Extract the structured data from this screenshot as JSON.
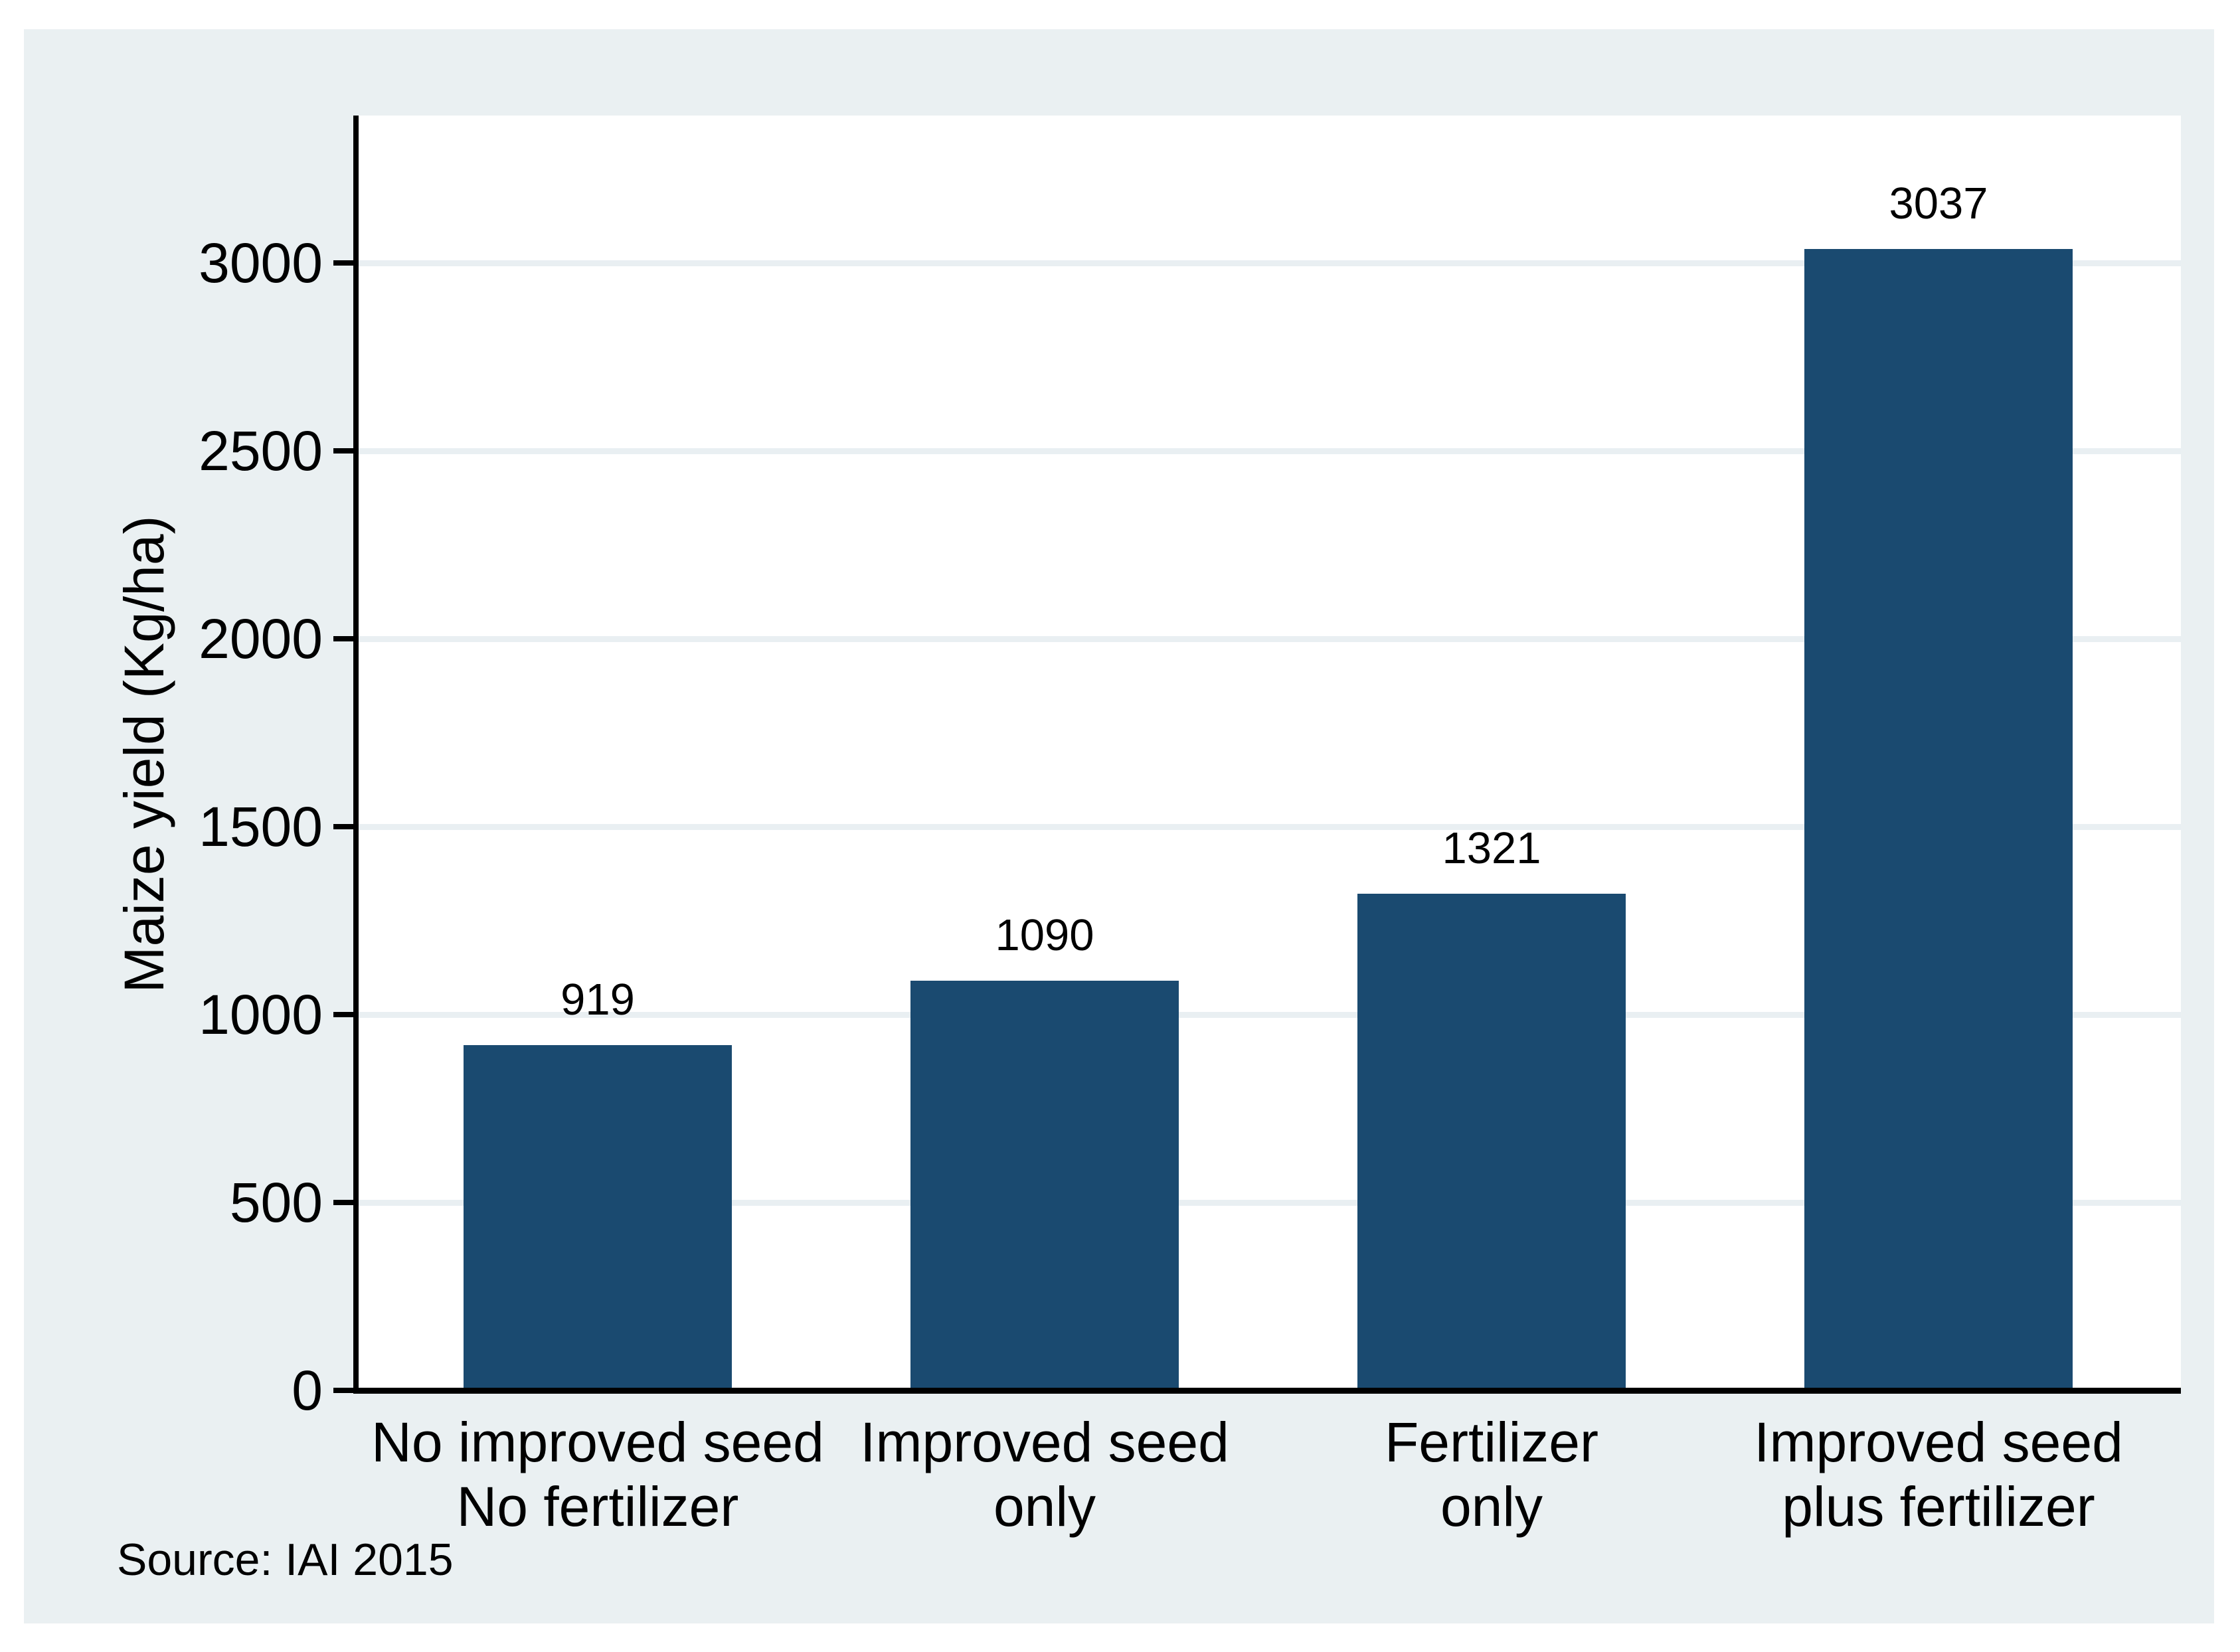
{
  "chart_data": {
    "type": "bar",
    "categories": [
      [
        "No improved seed",
        "No fertilizer"
      ],
      [
        "Improved seed",
        "only"
      ],
      [
        "Fertilizer",
        "only"
      ],
      [
        "Improved seed",
        "plus fertilizer"
      ]
    ],
    "values": [
      919,
      1090,
      1321,
      3037
    ],
    "value_labels": [
      "919",
      "1090",
      "1321",
      "3037"
    ],
    "title": "",
    "xlabel": "",
    "ylabel": "Maize yield (Kg/ha)",
    "note": "Source: IAI 2015",
    "yticks": [
      0,
      500,
      1000,
      1500,
      2000,
      2500,
      3000
    ],
    "ytick_labels": [
      "0",
      "500",
      "1000",
      "1500",
      "2000",
      "2500",
      "3000"
    ],
    "ylim": [
      0,
      3392
    ],
    "grid": true,
    "legend": "none"
  },
  "colors": {
    "bar": "#1a4a70",
    "outer_background": "#eaf0f2",
    "plot_background": "#ffffff",
    "gridline": "#e9eff2",
    "axis": "#000000",
    "text": "#000000"
  }
}
